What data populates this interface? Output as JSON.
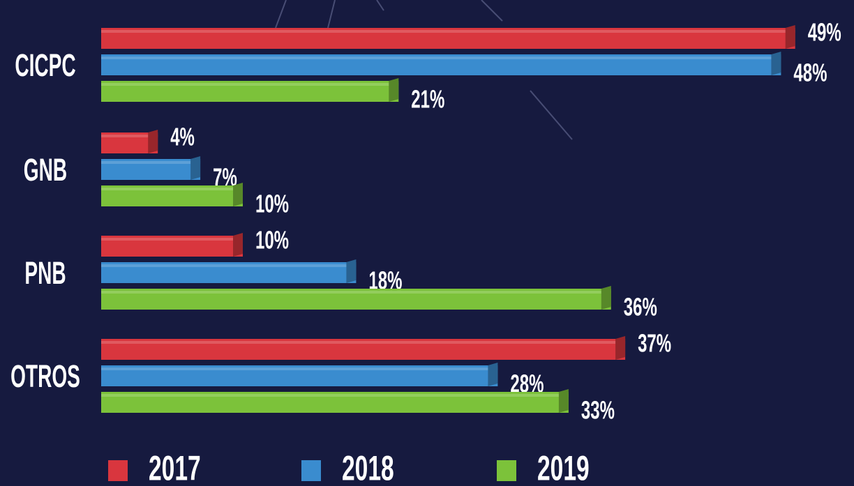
{
  "chart_data": {
    "type": "bar",
    "categories": [
      "CICPC",
      "GNB",
      "PNB",
      "OTROS"
    ],
    "series": [
      {
        "name": "2017",
        "color": "#d9363e",
        "values": [
          49,
          4,
          10,
          37
        ],
        "value_labels": [
          "49%",
          "4%",
          "10%",
          "37%"
        ]
      },
      {
        "name": "2018",
        "color": "#3a8ccf",
        "values": [
          48,
          7,
          18,
          28
        ],
        "value_labels": [
          "48%",
          "7%",
          "18%",
          "28%"
        ]
      },
      {
        "name": "2019",
        "color": "#7cc23a",
        "values": [
          21,
          10,
          36,
          33
        ],
        "value_labels": [
          "21%",
          "10%",
          "36%",
          "33%"
        ]
      }
    ]
  }
}
